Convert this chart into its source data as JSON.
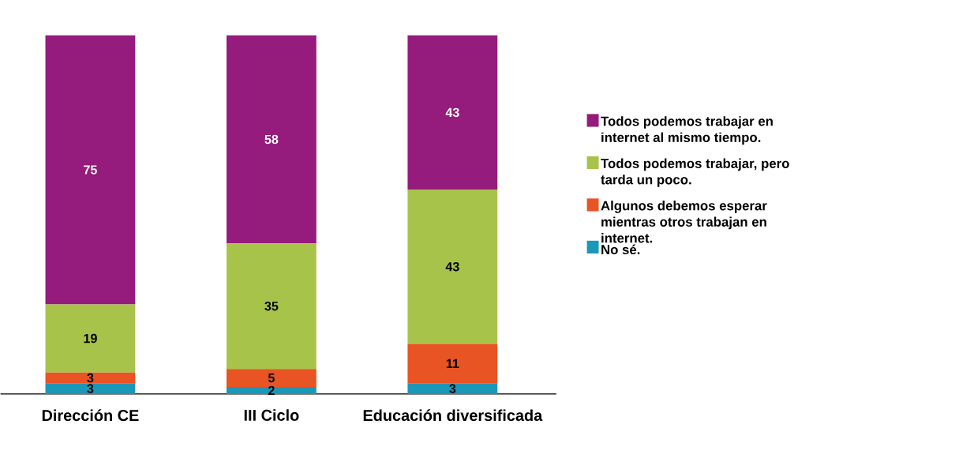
{
  "chart_data": {
    "type": "bar",
    "stacked": true,
    "categories": [
      "Dirección CE",
      "III Ciclo",
      "Educación diversificada"
    ],
    "series": [
      {
        "name": "No sé.",
        "color": "#1b97b8",
        "values": [
          3,
          2,
          3
        ]
      },
      {
        "name": "Algunos debemos esperar mientras otros trabajan en internet.",
        "color": "#e85424",
        "values": [
          3,
          5,
          11
        ]
      },
      {
        "name": "Todos podemos trabajar, pero tarda un poco.",
        "color": "#a8c34a",
        "values": [
          19,
          35,
          43
        ]
      },
      {
        "name": "Todos podemos trabajar en internet al mismo tiempo.",
        "color": "#951b7c",
        "values": [
          75,
          58,
          43
        ]
      }
    ],
    "ylim": [
      0,
      100
    ],
    "data_labels": true,
    "legend": "right"
  }
}
